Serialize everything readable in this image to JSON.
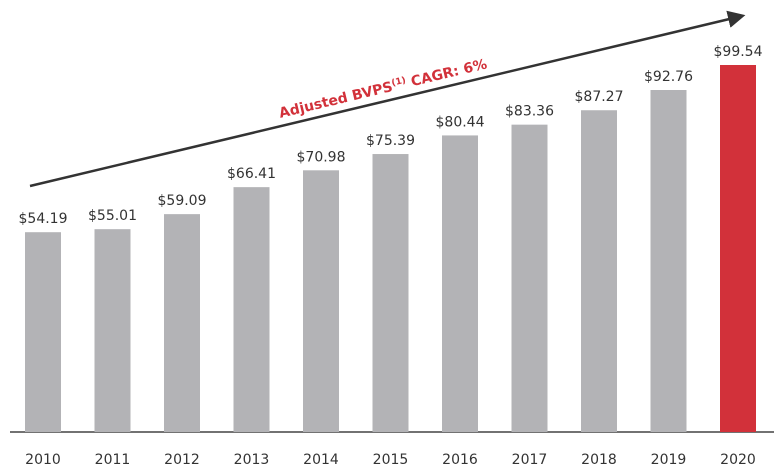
{
  "chart_data": {
    "type": "bar",
    "categories": [
      "2010",
      "2011",
      "2012",
      "2013",
      "2014",
      "2015",
      "2016",
      "2017",
      "2018",
      "2019",
      "2020"
    ],
    "values": [
      54.19,
      55.01,
      59.09,
      66.41,
      70.98,
      75.39,
      80.44,
      83.36,
      87.27,
      92.76,
      99.54
    ],
    "value_labels": [
      "$54.19",
      "$55.01",
      "$59.09",
      "$66.41",
      "$70.98",
      "$75.39",
      "$80.44",
      "$83.36",
      "$87.27",
      "$92.76",
      "$99.54"
    ],
    "colors": [
      "#b3b3b6",
      "#b3b3b6",
      "#b3b3b6",
      "#b3b3b6",
      "#b3b3b6",
      "#b3b3b6",
      "#b3b3b6",
      "#b3b3b6",
      "#b3b3b6",
      "#b3b3b6",
      "#d2313a"
    ],
    "annotation": {
      "text": "Adjusted BVPS",
      "superscript": "(1)",
      "suffix": " CAGR: 6%"
    }
  }
}
